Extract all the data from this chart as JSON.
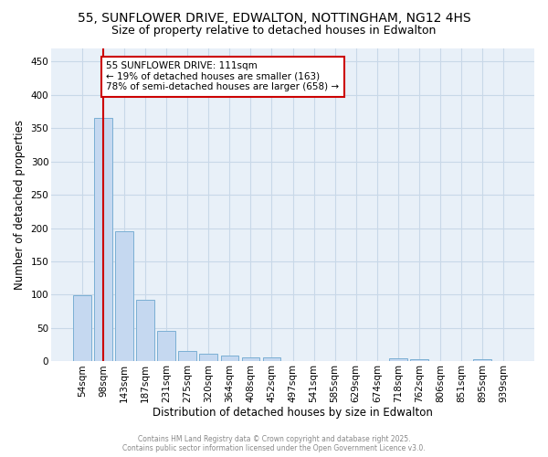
{
  "title_line1": "55, SUNFLOWER DRIVE, EDWALTON, NOTTINGHAM, NG12 4HS",
  "title_line2": "Size of property relative to detached houses in Edwalton",
  "xlabel": "Distribution of detached houses by size in Edwalton",
  "ylabel": "Number of detached properties",
  "bar_labels": [
    "54sqm",
    "98sqm",
    "143sqm",
    "187sqm",
    "231sqm",
    "275sqm",
    "320sqm",
    "364sqm",
    "408sqm",
    "452sqm",
    "497sqm",
    "541sqm",
    "585sqm",
    "629sqm",
    "674sqm",
    "718sqm",
    "762sqm",
    "806sqm",
    "851sqm",
    "895sqm",
    "939sqm"
  ],
  "bar_values": [
    99,
    365,
    195,
    93,
    46,
    15,
    11,
    9,
    6,
    6,
    0,
    0,
    0,
    0,
    0,
    5,
    4,
    0,
    0,
    3,
    0
  ],
  "bar_color": "#C5D8F0",
  "bar_edge_color": "#7BAFD4",
  "ylim": [
    0,
    470
  ],
  "yticks": [
    0,
    50,
    100,
    150,
    200,
    250,
    300,
    350,
    400,
    450
  ],
  "red_line_x": 1.0,
  "annotation_text": "55 SUNFLOWER DRIVE: 111sqm\n← 19% of detached houses are smaller (163)\n78% of semi-detached houses are larger (658) →",
  "annotation_box_color": "#FFFFFF",
  "annotation_box_edge": "#CC0000",
  "footer_line1": "Contains HM Land Registry data © Crown copyright and database right 2025.",
  "footer_line2": "Contains public sector information licensed under the Open Government Licence v3.0.",
  "background_color": "#FFFFFF",
  "plot_bg_color": "#E8F0F8",
  "grid_color": "#C8D8E8",
  "title_fontsize": 10,
  "subtitle_fontsize": 9,
  "axis_label_fontsize": 8.5,
  "tick_fontsize": 7.5,
  "annotation_fontsize": 7.5
}
